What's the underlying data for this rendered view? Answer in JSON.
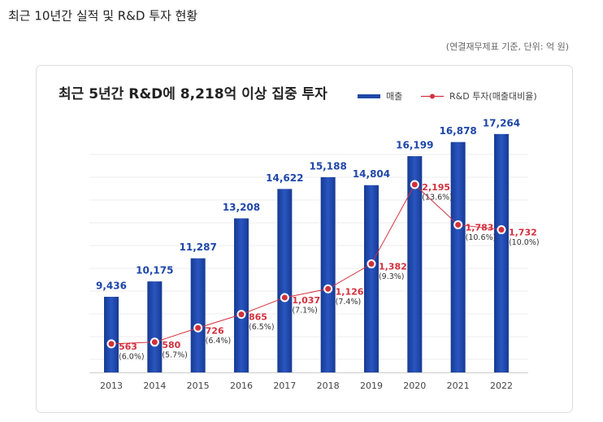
{
  "header": {
    "title": "최근 10년간 실적 및 R&D 투자 현황",
    "note": "(연결재무제표 기준, 단위: 억 원)"
  },
  "chart_data": {
    "type": "bar",
    "title": "최근 5년간 R&D에 8,218억 이상 집중 투자",
    "categories": [
      "2013",
      "2014",
      "2015",
      "2016",
      "2017",
      "2018",
      "2019",
      "2020",
      "2021",
      "2022"
    ],
    "series": [
      {
        "name": "매출",
        "type": "bar",
        "color": "#1f47a8",
        "values": [
          9436,
          10175,
          11287,
          13208,
          14622,
          15188,
          14804,
          16199,
          16878,
          17264
        ],
        "value_labels": [
          "9,436",
          "10,175",
          "11,287",
          "13,208",
          "14,622",
          "15,188",
          "14,804",
          "16,199",
          "16,878",
          "17,264"
        ]
      },
      {
        "name": "R&D 투자(매출대비율)",
        "type": "line",
        "axis": "y2",
        "color": "#d3303c",
        "values": [
          563,
          580,
          726,
          865,
          1037,
          1126,
          1382,
          2195,
          1783,
          1732
        ],
        "value_labels": [
          "563",
          "580",
          "726",
          "865",
          "1,037",
          "1,126",
          "1,382",
          "2,195",
          "1,783",
          "1,732"
        ],
        "ratio_labels": [
          "(6.0%)",
          "(5.7%)",
          "(6.4%)",
          "(6.5%)",
          "(7.1%)",
          "(7.4%)",
          "(9.3%)",
          "(13.6%)",
          "(10.6%)",
          "(10.0%)"
        ]
      }
    ],
    "ylim": [
      5800,
      18000
    ],
    "y2lim": [
      270,
      2870
    ],
    "legend": "top-right"
  }
}
